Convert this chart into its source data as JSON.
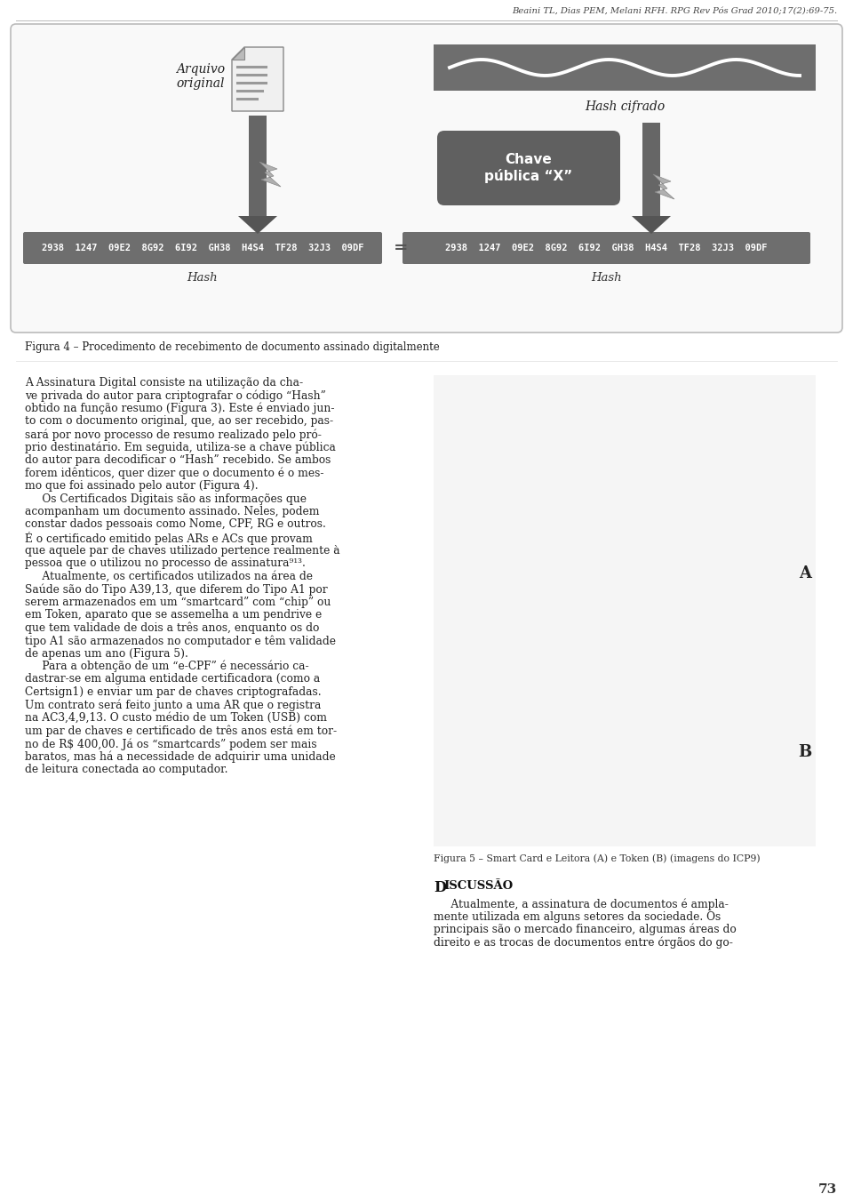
{
  "header_text": "Beaini TL, Dias PEM, Melani RFH. RPG Rev Pós Grad 2010;17(2):69-75.",
  "figure4_caption": "Figura 4 – Procedimento de recebimento de documento assinado digitalmente",
  "hash_string": "2938  1247  09E2  8G92  6I92  GH38  H4S4  TF28  32J3  09DF",
  "left_label_line1": "Arquivo",
  "left_label_line2": "original",
  "right_top_label": "Hash cifrado",
  "chave_label": "Chave\npública “X”",
  "hash_left_label": "Hash",
  "hash_right_label": "Hash",
  "figure4_caption_text": "Figura 4 – Procedimento de recebimento de documento assinado digitalmente",
  "body_text_col2_caption": "Figura 5 – Smart Card e Leitora (A) e Token (B) (imagens do ICP9)",
  "discussao_title": "Discussão",
  "page_number": "73",
  "bg_color": "#ffffff",
  "text_color": "#222222",
  "diagram_bg": "#f8f8f8",
  "diagram_border": "#aaaaaa",
  "hash_box_color": "#6e6e6e",
  "hash_text_color": "#ffffff",
  "wave_box_color": "#707070",
  "chave_box_color": "#606060",
  "chave_text_color": "#ffffff",
  "arrow_shaft_color": "#666666",
  "arrow_head_color": "#555555",
  "bolt_color": "#aaaaaa",
  "col1_lines": [
    "A Assinatura Digital consiste na utilização da cha-",
    "ve privada do autor para criptografar o código “Hash”",
    "obtido na função resumo (Figura 3). Este é enviado jun-",
    "to com o documento original, que, ao ser recebido, pas-",
    "sará por novo processo de resumo realizado pelo pró-",
    "prio destinatário. Em seguida, utiliza-se a chave pública",
    "do autor para decodificar o “Hash” recebido. Se ambos",
    "forem idênticos, quer dizer que o documento é o mes-",
    "mo que foi assinado pelo autor (Figura 4).",
    "     Os Certificados Digitais são as informações que",
    "acompanham um documento assinado. Neles, podem",
    "constar dados pessoais como Nome, CPF, RG e outros.",
    "É o certificado emitido pelas ARs e ACs que provam",
    "que aquele par de chaves utilizado pertence realmente à",
    "pessoa que o utilizou no processo de assinatura⁹¹³.",
    "     Atualmente, os certificados utilizados na área de",
    "Saúde são do Tipo A39,13, que diferem do Tipo A1 por",
    "serem armazenados em um “smartcard” com “chip” ou",
    "em Token, aparato que se assemelha a um pendrive e",
    "que tem validade de dois a três anos, enquanto os do",
    "tipo A1 são armazenados no computador e têm validade",
    "de apenas um ano (Figura 5).",
    "     Para a obtenção de um “e-CPF” é necessário ca-",
    "dastrar-se em alguma entidade certificadora (como a",
    "Certsign1) e enviar um par de chaves criptografadas.",
    "Um contrato será feito junto a uma AR que o registra",
    "na AC3,4,9,13. O custo médio de um Token (USB) com",
    "um par de chaves e certificado de três anos está em tor-",
    "no de R$ 400,00. Já os “smartcards” podem ser mais",
    "baratos, mas há a necessidade de adquirir uma unidade",
    "de leitura conectada ao computador."
  ],
  "italic_words": [
    "smartcard",
    "chip",
    "Token",
    "pendrive",
    "smartcards"
  ],
  "disc_lines": [
    "     Atualmente, a assinatura de documentos é ampla-",
    "mente utilizada em alguns setores da sociedade. Os",
    "principais são o mercado financeiro, algumas áreas do",
    "direito e as trocas de documentos entre órgãos do go-"
  ]
}
